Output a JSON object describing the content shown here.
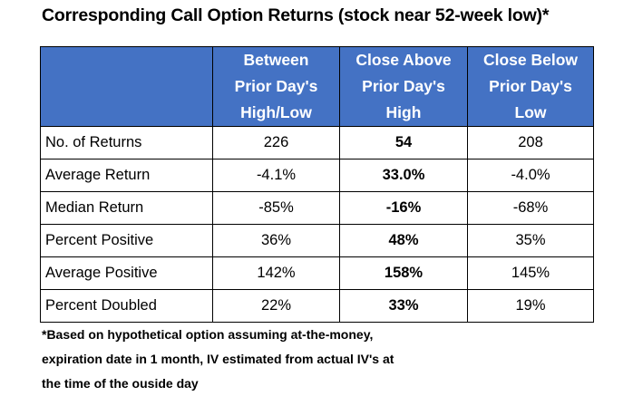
{
  "title": "Corresponding Call Option Returns (stock near 52-week low)*",
  "table": {
    "corner": "",
    "headers": [
      [
        "Between",
        "Prior Day's",
        "High/Low"
      ],
      [
        "Close Above",
        "Prior Day's",
        "High"
      ],
      [
        "Close Below",
        "Prior Day's",
        "Low"
      ]
    ],
    "rows": [
      {
        "label": "No. of Returns",
        "values": [
          "226",
          "54",
          "208"
        ]
      },
      {
        "label": "Average Return",
        "values": [
          "-4.1%",
          "33.0%",
          "-4.0%"
        ]
      },
      {
        "label": "Median Return",
        "values": [
          "-85%",
          "-16%",
          "-68%"
        ]
      },
      {
        "label": "Percent Positive",
        "values": [
          "36%",
          "48%",
          "35%"
        ]
      },
      {
        "label": "Average Positive",
        "values": [
          "142%",
          "158%",
          "145%"
        ]
      },
      {
        "label": "Percent Doubled",
        "values": [
          "22%",
          "33%",
          "19%"
        ]
      }
    ],
    "header_color": "#4472c4"
  },
  "footnote": [
    "*Based on hypothetical option assuming at-the-money,",
    "expiration date in 1 month, IV estimated from actual IV's at",
    "the time of the ouside day"
  ]
}
